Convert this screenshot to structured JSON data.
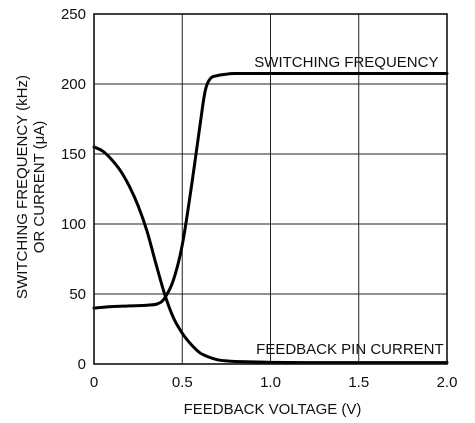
{
  "chart_data": {
    "type": "line",
    "title": "",
    "xlabel": "FEEDBACK VOLTAGE (V)",
    "ylabel_lines": [
      "SWITCHING FREQUENCY (kHz)",
      "OR CURRENT (μA)"
    ],
    "xlim": [
      0,
      2.0
    ],
    "ylim": [
      0,
      250
    ],
    "x_ticks": [
      0,
      0.5,
      1.0,
      1.5,
      2.0
    ],
    "x_tick_labels": [
      "0",
      "0.5",
      "1.0",
      "1.5",
      "2.0"
    ],
    "y_ticks": [
      0,
      50,
      100,
      150,
      200,
      250
    ],
    "y_tick_labels": [
      "0",
      "50",
      "100",
      "150",
      "200",
      "250"
    ],
    "grid": true,
    "legend": "none",
    "series": [
      {
        "name": "SWITCHING FREQUENCY",
        "x": [
          0,
          0.1,
          0.2,
          0.3,
          0.36,
          0.4,
          0.45,
          0.5,
          0.55,
          0.6,
          0.63,
          0.66,
          0.7,
          0.75,
          0.8,
          1.0,
          1.5,
          2.0
        ],
        "y": [
          40,
          41,
          41.5,
          42,
          43,
          47,
          60,
          85,
          125,
          170,
          195,
          204,
          206,
          207,
          207.5,
          207.5,
          207.5,
          207.5
        ]
      },
      {
        "name": "FEEDBACK PIN CURRENT",
        "x": [
          0,
          0.05,
          0.1,
          0.15,
          0.2,
          0.25,
          0.3,
          0.35,
          0.4,
          0.45,
          0.5,
          0.55,
          0.6,
          0.65,
          0.7,
          0.75,
          0.8,
          0.9,
          1.0,
          1.2,
          1.5,
          2.0
        ],
        "y": [
          155,
          152,
          146,
          138,
          127,
          113,
          95,
          72,
          50,
          33,
          22,
          14,
          8,
          5,
          3,
          2.2,
          1.8,
          1.5,
          1.2,
          1,
          1,
          1
        ]
      }
    ],
    "annotations": [
      {
        "text": "SWITCHING FREQUENCY",
        "x": 1.43,
        "y": 212
      },
      {
        "text": "FEEDBACK PIN CURRENT",
        "x": 1.45,
        "y": 7
      }
    ]
  }
}
